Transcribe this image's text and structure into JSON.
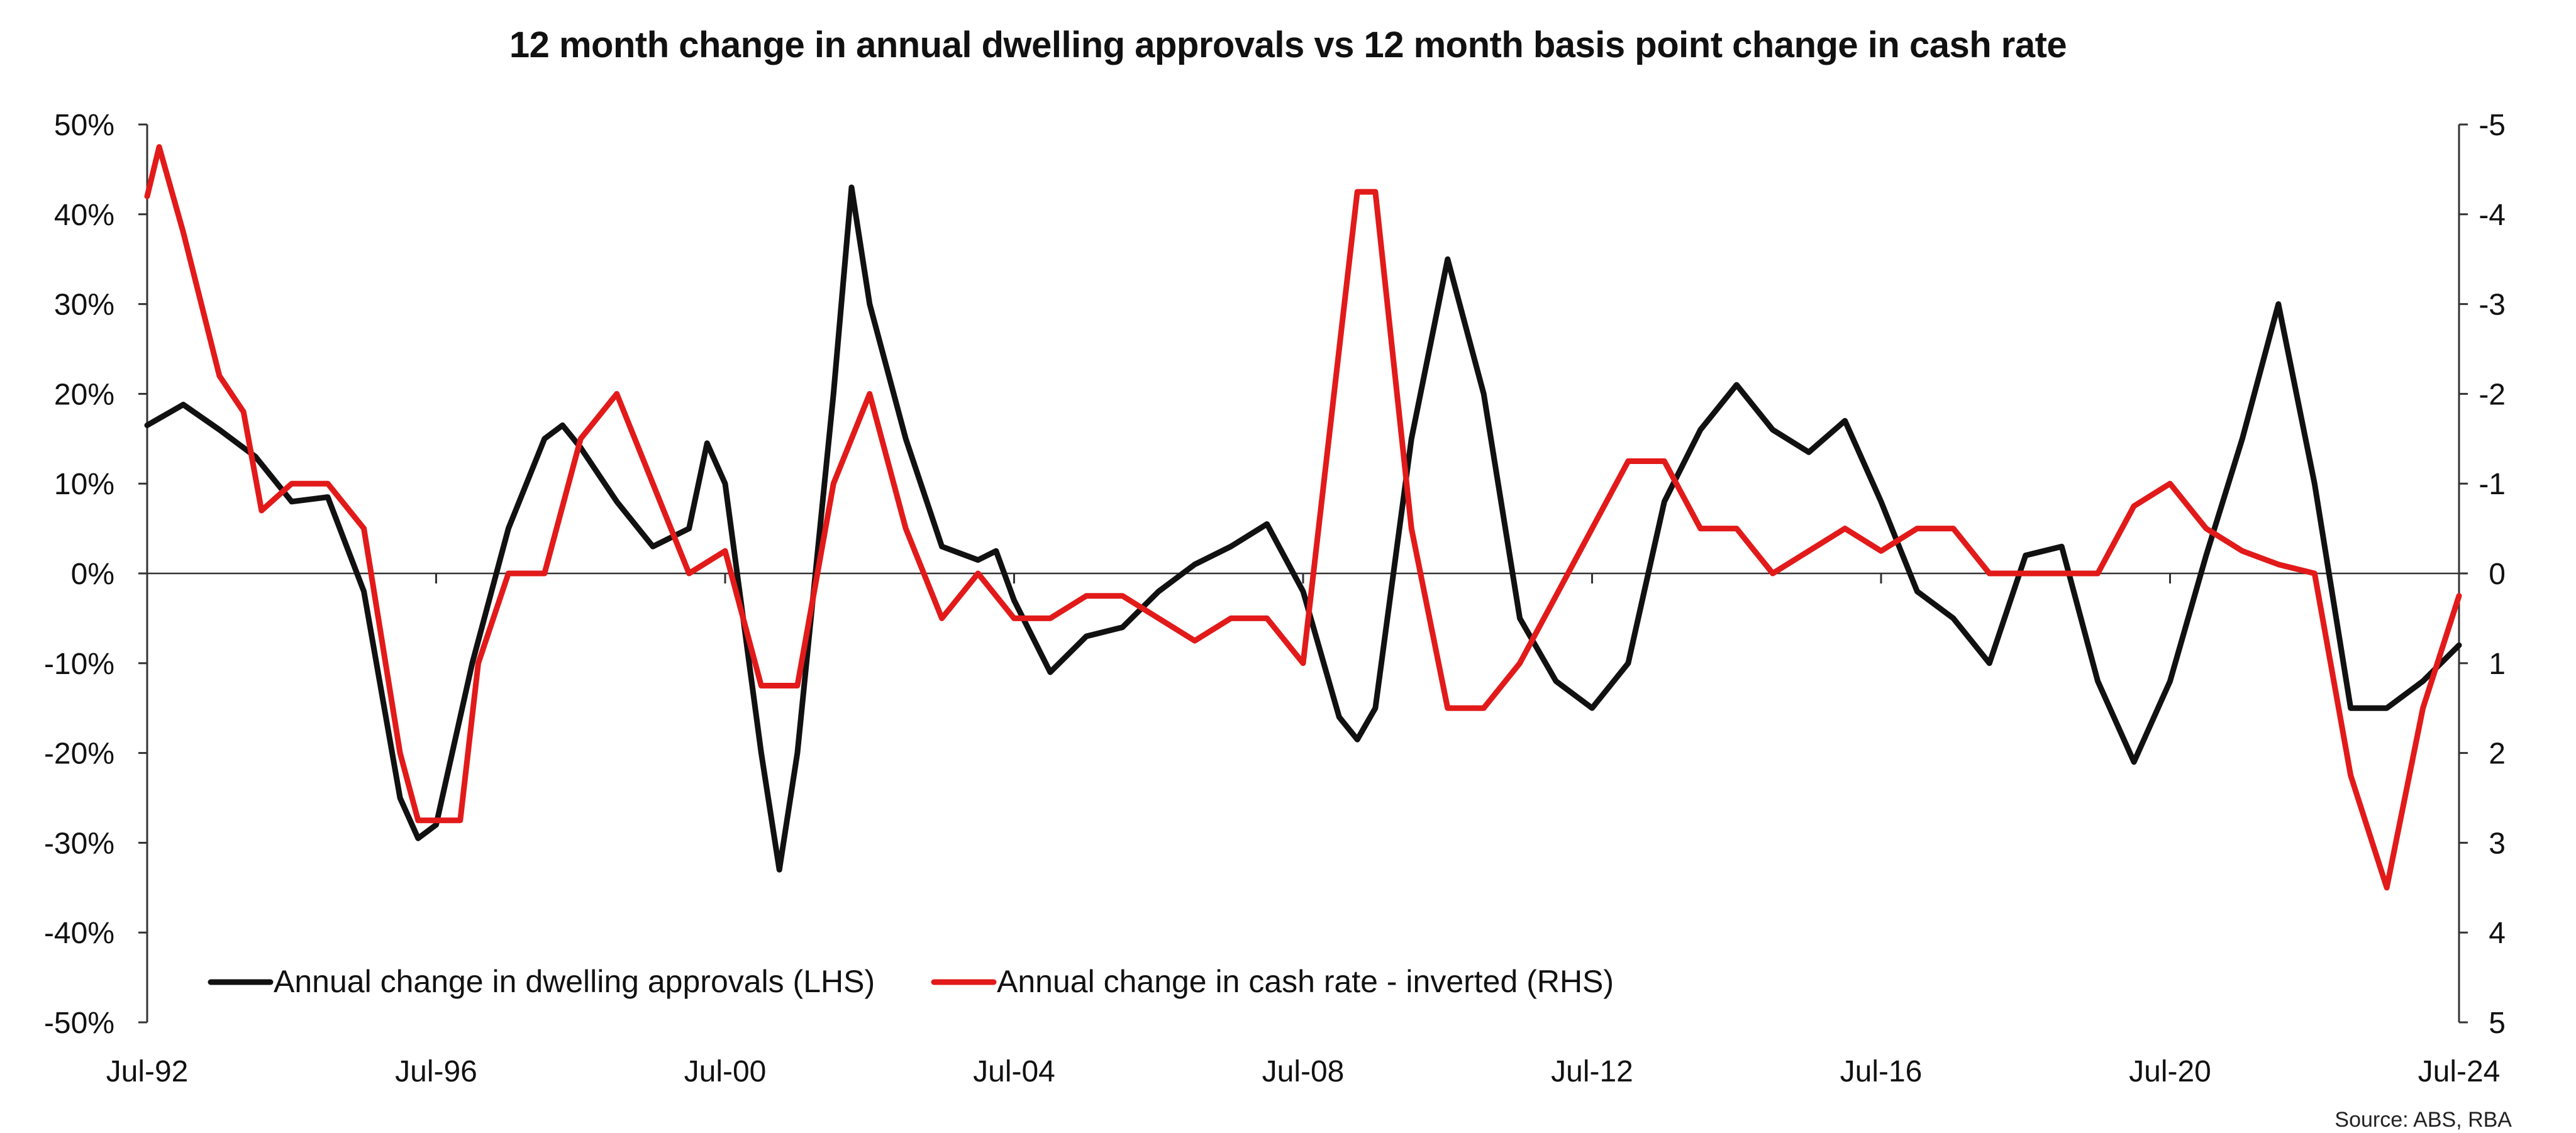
{
  "chart_data": {
    "type": "line",
    "title": "12 month change in annual dwelling approvals vs 12 month basis point change in cash rate",
    "source": "Source: ABS, RBA",
    "x_range": [
      "1992-07",
      "2024-07"
    ],
    "x_ticks": [
      "Jul-92",
      "Jul-96",
      "Jul-00",
      "Jul-04",
      "Jul-08",
      "Jul-12",
      "Jul-16",
      "Jul-20",
      "Jul-24"
    ],
    "y_left": {
      "range": [
        -50,
        50
      ],
      "ticks": [
        "50%",
        "40%",
        "30%",
        "20%",
        "10%",
        "0%",
        "-10%",
        "-20%",
        "-30%",
        "-40%",
        "-50%"
      ]
    },
    "y_right": {
      "range": [
        -5,
        5
      ],
      "inverted": true,
      "ticks": [
        "-5",
        "-4",
        "-3",
        "-2",
        "-1",
        "0",
        "1",
        "2",
        "3",
        "4",
        "5"
      ]
    },
    "grid": false,
    "zero_line": true,
    "legend_placement": "bottom-left",
    "series": [
      {
        "name": "Annual change in dwelling approvals (LHS)",
        "axis": "left",
        "color": "#111111",
        "points": [
          [
            "1992-07",
            16.5
          ],
          [
            "1993-01",
            18.8
          ],
          [
            "1993-07",
            16
          ],
          [
            "1994-01",
            13
          ],
          [
            "1994-07",
            8
          ],
          [
            "1995-01",
            8.5
          ],
          [
            "1995-07",
            -2
          ],
          [
            "1996-01",
            -25
          ],
          [
            "1996-04",
            -29.5
          ],
          [
            "1996-07",
            -28
          ],
          [
            "1997-01",
            -10
          ],
          [
            "1997-07",
            5
          ],
          [
            "1998-01",
            15
          ],
          [
            "1998-04",
            16.5
          ],
          [
            "1998-07",
            14
          ],
          [
            "1999-01",
            8
          ],
          [
            "1999-07",
            3
          ],
          [
            "2000-01",
            5
          ],
          [
            "2000-04",
            14.5
          ],
          [
            "2000-07",
            10
          ],
          [
            "2001-01",
            -20
          ],
          [
            "2001-04",
            -33
          ],
          [
            "2001-07",
            -20
          ],
          [
            "2002-01",
            20
          ],
          [
            "2002-04",
            43
          ],
          [
            "2002-07",
            30
          ],
          [
            "2003-01",
            15
          ],
          [
            "2003-07",
            3
          ],
          [
            "2004-01",
            1.5
          ],
          [
            "2004-04",
            2.5
          ],
          [
            "2004-07",
            -3
          ],
          [
            "2005-01",
            -11
          ],
          [
            "2005-07",
            -7
          ],
          [
            "2006-01",
            -6
          ],
          [
            "2006-07",
            -2
          ],
          [
            "2007-01",
            1
          ],
          [
            "2007-07",
            3
          ],
          [
            "2008-01",
            5.5
          ],
          [
            "2008-07",
            -2
          ],
          [
            "2009-01",
            -16
          ],
          [
            "2009-04",
            -18.5
          ],
          [
            "2009-07",
            -15
          ],
          [
            "2010-01",
            15
          ],
          [
            "2010-07",
            35
          ],
          [
            "2011-01",
            20
          ],
          [
            "2011-07",
            -5
          ],
          [
            "2012-01",
            -12
          ],
          [
            "2012-07",
            -15
          ],
          [
            "2013-01",
            -10
          ],
          [
            "2013-07",
            8
          ],
          [
            "2014-01",
            16
          ],
          [
            "2014-07",
            21
          ],
          [
            "2015-01",
            16
          ],
          [
            "2015-07",
            13.5
          ],
          [
            "2016-01",
            17
          ],
          [
            "2016-07",
            8
          ],
          [
            "2017-01",
            -2
          ],
          [
            "2017-07",
            -5
          ],
          [
            "2018-01",
            -10
          ],
          [
            "2018-07",
            2
          ],
          [
            "2019-01",
            3
          ],
          [
            "2019-07",
            -12
          ],
          [
            "2020-01",
            -21
          ],
          [
            "2020-07",
            -12
          ],
          [
            "2021-01",
            2
          ],
          [
            "2021-07",
            15
          ],
          [
            "2022-01",
            30
          ],
          [
            "2022-07",
            10
          ],
          [
            "2023-01",
            -15
          ],
          [
            "2023-07",
            -15
          ],
          [
            "2024-01",
            -12
          ],
          [
            "2024-07",
            -8
          ]
        ]
      },
      {
        "name": "Annual change in cash rate - inverted (RHS)",
        "axis": "right",
        "color": "#e21a1a",
        "points": [
          [
            "1992-07",
            -4.2
          ],
          [
            "1992-09",
            -4.75
          ],
          [
            "1993-01",
            -3.8
          ],
          [
            "1993-07",
            -2.2
          ],
          [
            "1993-11",
            -1.8
          ],
          [
            "1994-02",
            -0.7
          ],
          [
            "1994-07",
            -1
          ],
          [
            "1995-01",
            -1
          ],
          [
            "1995-07",
            -0.5
          ],
          [
            "1996-01",
            2
          ],
          [
            "1996-04",
            2.75
          ],
          [
            "1996-11",
            2.75
          ],
          [
            "1997-02",
            1
          ],
          [
            "1997-07",
            0
          ],
          [
            "1998-01",
            0
          ],
          [
            "1998-07",
            -1.5
          ],
          [
            "1999-01",
            -2
          ],
          [
            "1999-07",
            -1
          ],
          [
            "2000-01",
            0
          ],
          [
            "2000-07",
            -0.25
          ],
          [
            "2001-01",
            1.25
          ],
          [
            "2001-07",
            1.25
          ],
          [
            "2002-01",
            -1
          ],
          [
            "2002-07",
            -2
          ],
          [
            "2003-01",
            -0.5
          ],
          [
            "2003-07",
            0.5
          ],
          [
            "2004-01",
            0
          ],
          [
            "2004-07",
            0.5
          ],
          [
            "2005-01",
            0.5
          ],
          [
            "2005-07",
            0.25
          ],
          [
            "2006-01",
            0.25
          ],
          [
            "2006-07",
            0.5
          ],
          [
            "2007-01",
            0.75
          ],
          [
            "2007-07",
            0.5
          ],
          [
            "2008-01",
            0.5
          ],
          [
            "2008-07",
            1
          ],
          [
            "2009-01",
            -2.5
          ],
          [
            "2009-04",
            -4.25
          ],
          [
            "2009-07",
            -4.25
          ],
          [
            "2010-01",
            -0.5
          ],
          [
            "2010-07",
            1.5
          ],
          [
            "2011-01",
            1.5
          ],
          [
            "2011-07",
            1
          ],
          [
            "2012-01",
            0.25
          ],
          [
            "2012-07",
            -0.5
          ],
          [
            "2013-01",
            -1.25
          ],
          [
            "2013-07",
            -1.25
          ],
          [
            "2014-01",
            -0.5
          ],
          [
            "2014-07",
            -0.5
          ],
          [
            "2015-01",
            0
          ],
          [
            "2015-07",
            -0.25
          ],
          [
            "2016-01",
            -0.5
          ],
          [
            "2016-07",
            -0.25
          ],
          [
            "2017-01",
            -0.5
          ],
          [
            "2017-07",
            -0.5
          ],
          [
            "2018-01",
            0
          ],
          [
            "2018-07",
            0
          ],
          [
            "2019-01",
            0
          ],
          [
            "2019-07",
            0
          ],
          [
            "2020-01",
            -0.75
          ],
          [
            "2020-07",
            -1
          ],
          [
            "2021-01",
            -0.5
          ],
          [
            "2021-07",
            -0.25
          ],
          [
            "2022-01",
            -0.1
          ],
          [
            "2022-07",
            0
          ],
          [
            "2023-01",
            2.25
          ],
          [
            "2023-07",
            3.5
          ],
          [
            "2024-01",
            1.5
          ],
          [
            "2024-07",
            0.25
          ]
        ]
      }
    ]
  }
}
